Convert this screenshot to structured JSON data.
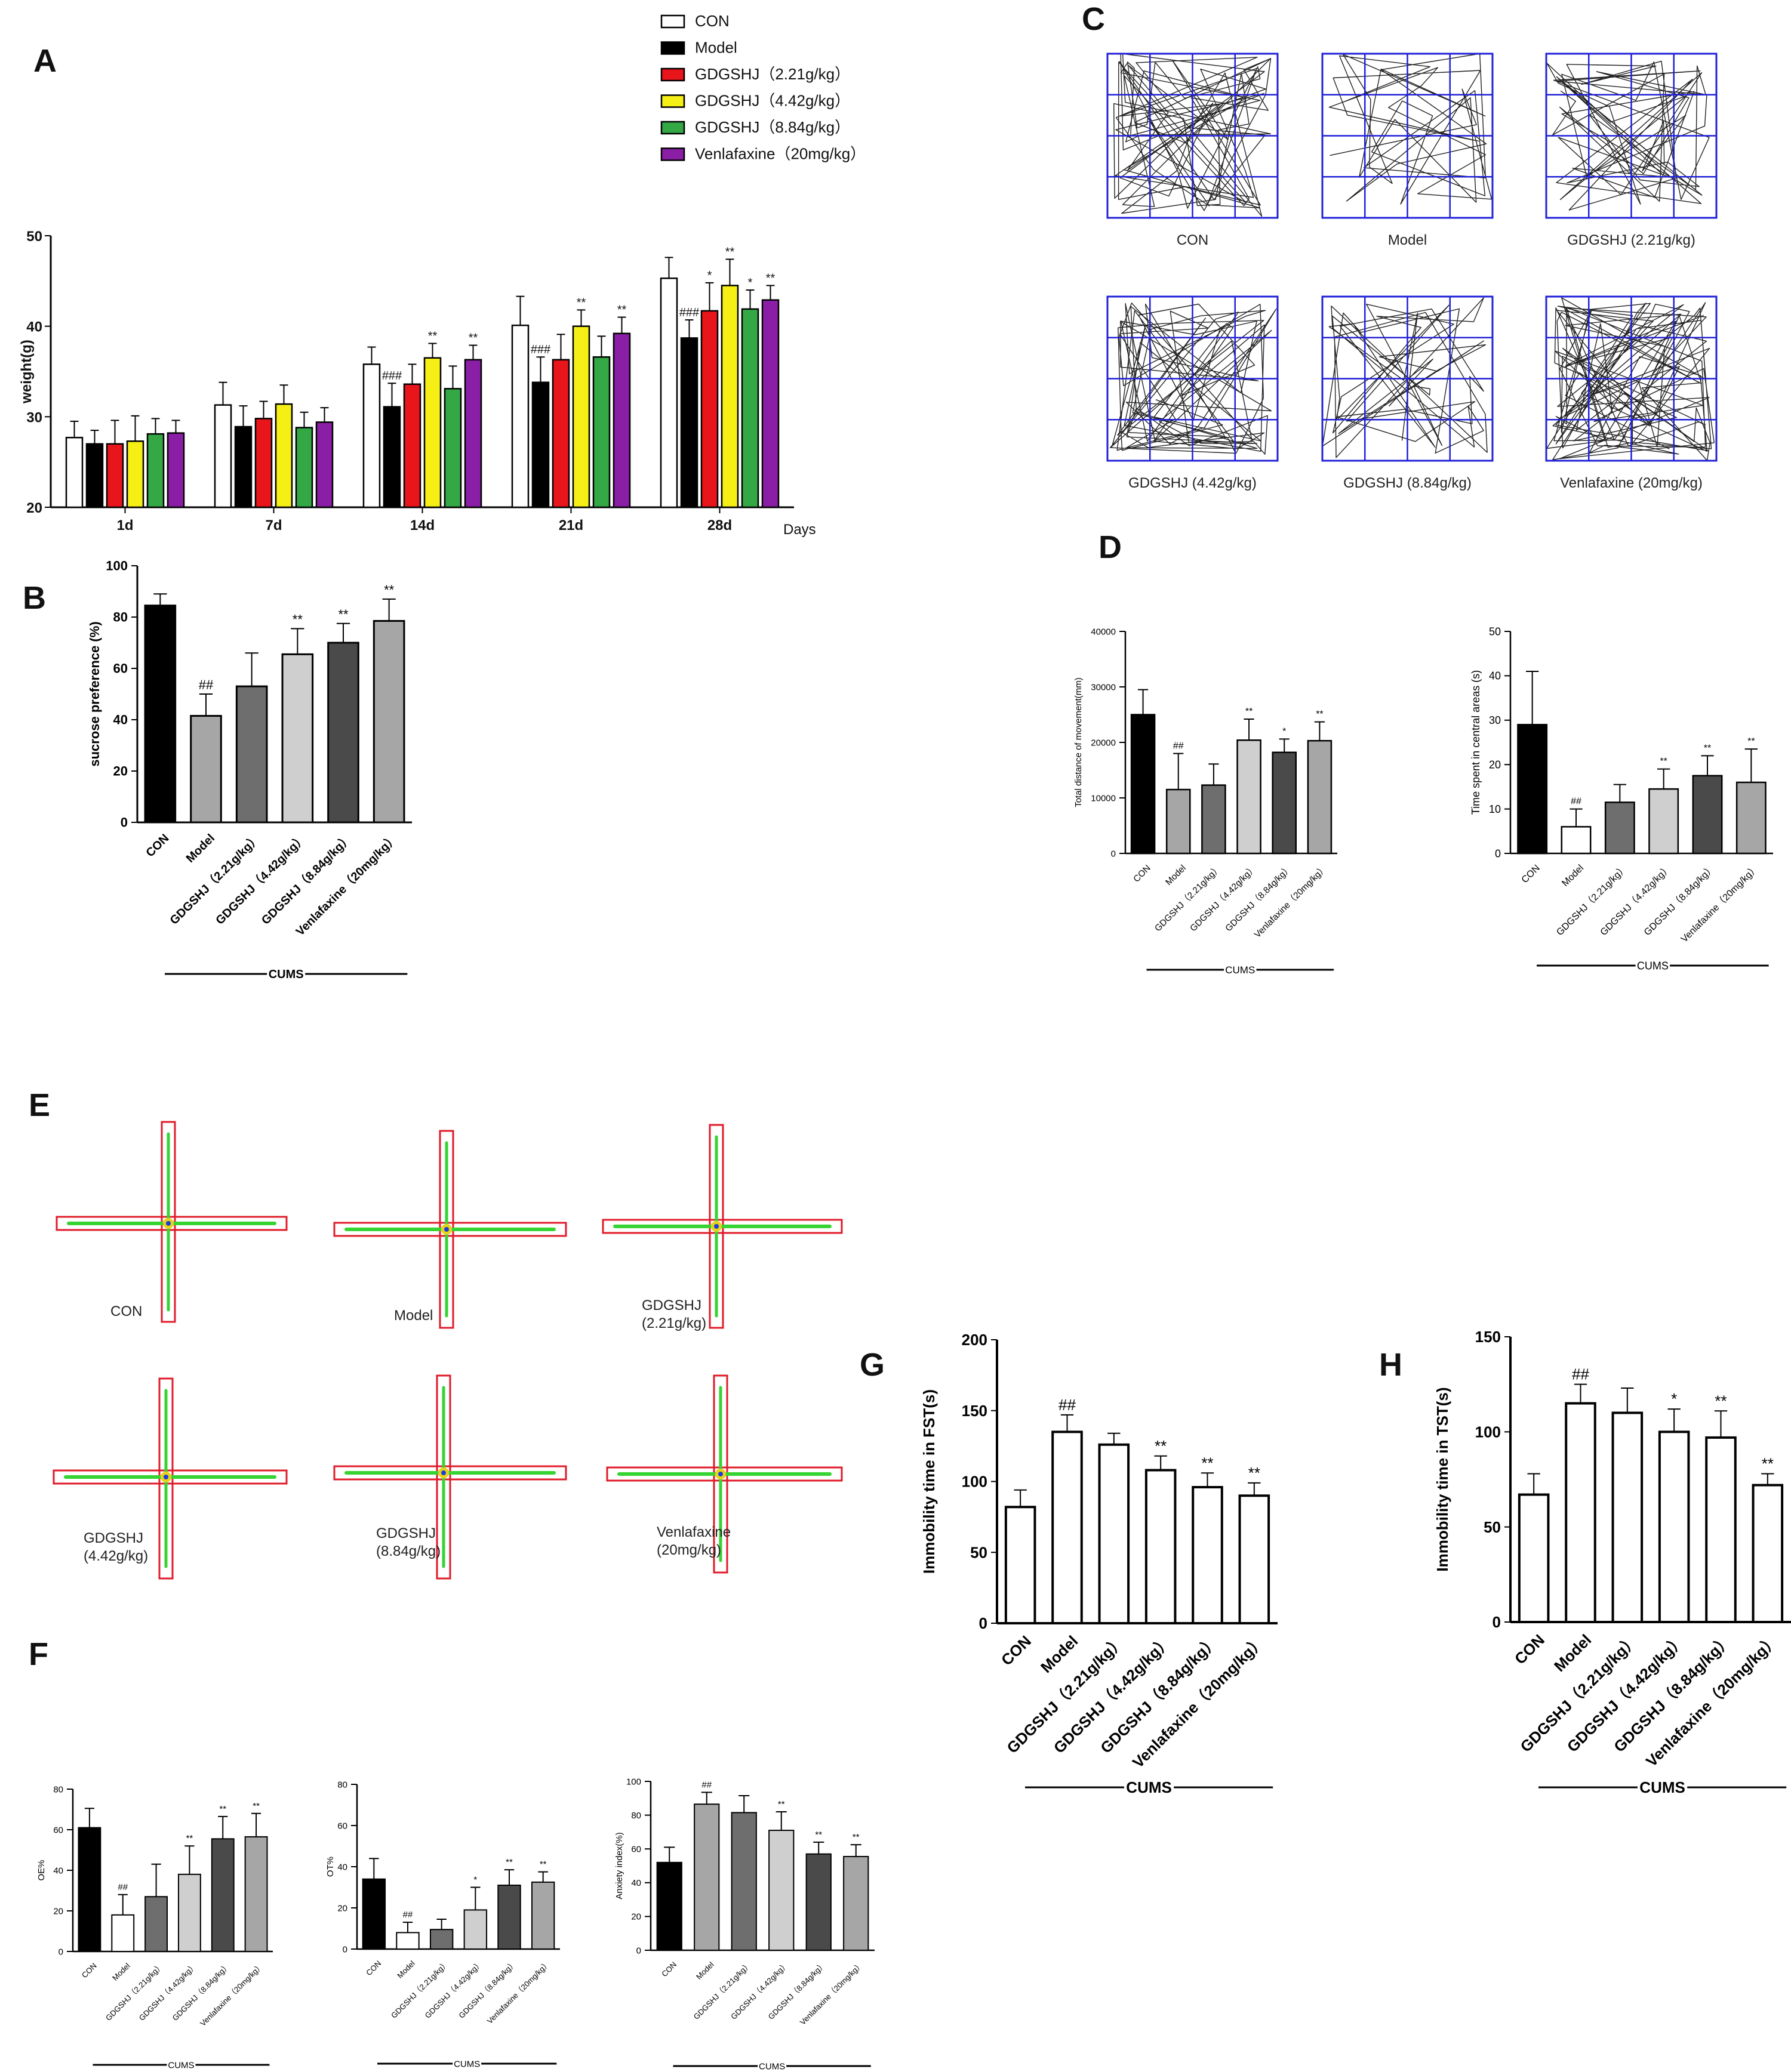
{
  "panels": {
    "A": "A",
    "B": "B",
    "C": "C",
    "D": "D",
    "E": "E",
    "F": "F",
    "G": "G",
    "H": "H"
  },
  "colors": {
    "CON": "#ffffff",
    "Model": "#000000",
    "GDGSHJ_2.21": "#e8151b",
    "GDGSHJ_4.42": "#f5ef16",
    "GDGSHJ_8.84": "#34a845",
    "Venlafaxine": "#8a1fa6"
  },
  "icons": {
    "track": "track-plot-icon",
    "maze": "plus-maze-icon"
  },
  "chart_data": [
    {
      "id": "A",
      "type": "bar",
      "title": "",
      "xlabel": "Days",
      "ylabel": "weight(g)",
      "ylim": [
        20,
        50
      ],
      "yticks": [
        "20",
        "30",
        "40",
        "50"
      ],
      "categories": [
        "1d",
        "7d",
        "14d",
        "21d",
        "28d"
      ],
      "legend": [
        "CON",
        "Model",
        "GDGSHJ（2.21g/kg）",
        "GDGSHJ（4.42g/kg）",
        "GDGSHJ（8.84g/kg）",
        "Venlafaxine（20mg/kg）"
      ],
      "legend_position": "top-right",
      "series": [
        {
          "name": "CON",
          "values": [
            27.7,
            31.3,
            35.8,
            40.1,
            45.3
          ],
          "errors": [
            1.8,
            2.5,
            1.9,
            3.2,
            2.3
          ],
          "labels": [
            "",
            "",
            "",
            "",
            ""
          ]
        },
        {
          "name": "Model",
          "values": [
            27.0,
            28.9,
            31.1,
            33.8,
            38.7
          ],
          "errors": [
            1.5,
            2.3,
            2.6,
            2.8,
            2.0
          ],
          "labels": [
            "",
            "",
            "###",
            "###",
            "###"
          ]
        },
        {
          "name": "GDGSHJ（2.21g/kg）",
          "values": [
            27.0,
            29.8,
            33.6,
            36.3,
            41.7
          ],
          "errors": [
            2.6,
            1.9,
            2.2,
            2.8,
            3.1
          ],
          "labels": [
            "",
            "",
            "",
            "",
            "*"
          ]
        },
        {
          "name": "GDGSHJ（4.42g/kg）",
          "values": [
            27.3,
            31.4,
            36.5,
            40.0,
            44.5
          ],
          "errors": [
            2.8,
            2.1,
            1.6,
            1.8,
            2.9
          ],
          "labels": [
            "",
            "",
            "**",
            "**",
            "**"
          ]
        },
        {
          "name": "GDGSHJ（8.84g/kg）",
          "values": [
            28.1,
            28.8,
            33.1,
            36.6,
            41.9
          ],
          "errors": [
            1.7,
            1.7,
            2.5,
            2.3,
            2.1
          ],
          "labels": [
            "",
            "",
            "",
            "",
            "*"
          ]
        },
        {
          "name": "Venlafaxine（20mg/kg）",
          "values": [
            28.2,
            29.4,
            36.3,
            39.2,
            42.9
          ],
          "errors": [
            1.4,
            1.6,
            1.6,
            1.8,
            1.6
          ],
          "labels": [
            "",
            "",
            "**",
            "**",
            "**"
          ]
        }
      ]
    },
    {
      "id": "B",
      "type": "bar",
      "ylabel": "sucrose preference (%)",
      "ylim": [
        0,
        100
      ],
      "yticks": [
        "0",
        "20",
        "40",
        "60",
        "80",
        "100"
      ],
      "categories": [
        "CON",
        "Model",
        "GDGSHJ（2.21g/kg）",
        "GDGSHJ（4.42g/kg）",
        "GDGSHJ（8.84g/kg）",
        "Venlafaxine（20mg/kg）"
      ],
      "values": [
        84.5,
        41.5,
        53,
        65.5,
        70,
        78.5
      ],
      "errors": [
        4.5,
        8.5,
        13,
        10,
        7.5,
        8.5
      ],
      "labels": [
        "",
        "##",
        "",
        "**",
        "**",
        "**"
      ],
      "fills": [
        "#000000",
        "#a6a6a6",
        "#6e6e6e",
        "#cfcfcf",
        "#4a4a4a",
        "#a6a6a6"
      ],
      "group_label": "CUMS"
    },
    {
      "id": "C",
      "type": "track_grid",
      "captions": [
        "CON",
        "Model",
        "GDGSHJ  (2.21g/kg)",
        "GDGSHJ  (4.42g/kg)",
        "GDGSHJ  (8.84g/kg)",
        "Venlafaxine  (20mg/kg)"
      ]
    },
    {
      "id": "D1",
      "type": "bar",
      "ylabel": "Total distance of movement(mm)",
      "ylim": [
        0,
        40000
      ],
      "yticks": [
        "0",
        "10000",
        "20000",
        "30000",
        "40000"
      ],
      "categories": [
        "CON",
        "Model",
        "GDGSHJ（2.21g/kg）",
        "GDGSHJ（4.42g/kg）",
        "GDGSHJ（8.84g/kg）",
        "Venlafaxine（20mg/kg）"
      ],
      "values": [
        25000,
        11500,
        12300,
        20400,
        18200,
        20300
      ],
      "errors": [
        4500,
        6500,
        3800,
        3800,
        2400,
        3400
      ],
      "labels": [
        "",
        "##",
        "",
        "**",
        "*",
        "**"
      ],
      "fills": [
        "#000000",
        "#a6a6a6",
        "#6e6e6e",
        "#cfcfcf",
        "#4a4a4a",
        "#a6a6a6"
      ],
      "group_label": "CUMS"
    },
    {
      "id": "D2",
      "type": "bar",
      "ylabel": "Time spent in central areas (s)",
      "ylim": [
        0,
        50
      ],
      "yticks": [
        "0",
        "10",
        "20",
        "30",
        "40",
        "50"
      ],
      "categories": [
        "CON",
        "Model",
        "GDGSHJ（2.21g/kg）",
        "GDGSHJ（4.42g/kg）",
        "GDGSHJ（8.84g/kg）",
        "Venlafaxine（20mg/kg）"
      ],
      "values": [
        29,
        6,
        11.5,
        14.5,
        17.5,
        16
      ],
      "errors": [
        12,
        4,
        4,
        4.5,
        4.5,
        7.5
      ],
      "labels": [
        "",
        "##",
        "",
        "**",
        "**",
        "**"
      ],
      "fills": [
        "#000000",
        "#ffffff",
        "#6e6e6e",
        "#cfcfcf",
        "#4a4a4a",
        "#a6a6a6"
      ],
      "group_label": "CUMS"
    },
    {
      "id": "E",
      "type": "maze_grid",
      "captions": [
        "CON",
        "Model",
        "GDGSHJ\n(2.21g/kg)",
        "GDGSHJ\n(4.42g/kg)",
        "GDGSHJ\n(8.84g/kg)",
        "Venlafaxine\n(20mg/kg)"
      ]
    },
    {
      "id": "F1",
      "type": "bar",
      "ylabel": "OE%",
      "ylim": [
        0,
        80
      ],
      "yticks": [
        "0",
        "20",
        "40",
        "60",
        "80"
      ],
      "categories": [
        "CON",
        "Model",
        "GDGSHJ（2.21g/kg）",
        "GDGSHJ（4.42g/kg）",
        "GDGSHJ（8.84g/kg）",
        "Venlafaxine（20mg/kg）"
      ],
      "values": [
        61,
        18,
        27,
        38,
        55.5,
        56.5
      ],
      "errors": [
        9.5,
        10,
        16,
        14,
        11,
        11.5
      ],
      "labels": [
        "",
        "##",
        "",
        "**",
        "**",
        "**"
      ],
      "fills": [
        "#000000",
        "#ffffff",
        "#6e6e6e",
        "#cfcfcf",
        "#4a4a4a",
        "#a6a6a6"
      ],
      "group_label": "CUMS"
    },
    {
      "id": "F2",
      "type": "bar",
      "ylabel": "OT%",
      "ylim": [
        0,
        80
      ],
      "yticks": [
        "0",
        "20",
        "40",
        "60",
        "80"
      ],
      "categories": [
        "CON",
        "Model",
        "GDGSHJ（2.21g/kg）",
        "GDGSHJ（4.42g/kg）",
        "GDGSHJ（8.84g/kg）",
        "Venlafaxine（20mg/kg）"
      ],
      "values": [
        34,
        8,
        9.5,
        19,
        31,
        32.5
      ],
      "errors": [
        10,
        5,
        5,
        11,
        7.5,
        5
      ],
      "labels": [
        "",
        "##",
        "",
        "*",
        "**",
        "**"
      ],
      "fills": [
        "#000000",
        "#ffffff",
        "#6e6e6e",
        "#cfcfcf",
        "#4a4a4a",
        "#a6a6a6"
      ],
      "group_label": "CUMS"
    },
    {
      "id": "F3",
      "type": "bar",
      "ylabel": "Anxiety index(%)",
      "ylim": [
        0,
        100
      ],
      "yticks": [
        "0",
        "20",
        "40",
        "60",
        "80",
        "100"
      ],
      "categories": [
        "CON",
        "Model",
        "GDGSHJ（2.21g/kg）",
        "GDGSHJ（4.42g/kg）",
        "GDGSHJ（8.84g/kg）",
        "Venlafaxine（20mg/kg）"
      ],
      "values": [
        52,
        86.5,
        81.5,
        71,
        57,
        55.5
      ],
      "errors": [
        9,
        7,
        10,
        11,
        7,
        7
      ],
      "labels": [
        "",
        "##",
        "",
        "**",
        "**",
        "**"
      ],
      "fills": [
        "#000000",
        "#a6a6a6",
        "#6e6e6e",
        "#cfcfcf",
        "#4a4a4a",
        "#a6a6a6"
      ],
      "group_label": "CUMS"
    },
    {
      "id": "G",
      "type": "bar",
      "ylabel": "Immobility time in FST(s)",
      "ylim": [
        0,
        200
      ],
      "yticks": [
        "0",
        "50",
        "100",
        "150",
        "200"
      ],
      "categories": [
        "CON",
        "Model",
        "GDGSHJ（2.21g/kg）",
        "GDGSHJ（4.42g/kg）",
        "GDGSHJ（8.84g/kg）",
        "Venlafaxine（20mg/kg）"
      ],
      "values": [
        82,
        135,
        126,
        108,
        96,
        90
      ],
      "errors": [
        12,
        12,
        8,
        10,
        10,
        9
      ],
      "labels": [
        "",
        "##",
        "",
        "**",
        "**",
        "**"
      ],
      "fills": [
        "#ffffff",
        "#ffffff",
        "#ffffff",
        "#ffffff",
        "#ffffff",
        "#ffffff"
      ],
      "group_label": "CUMS"
    },
    {
      "id": "H",
      "type": "bar",
      "ylabel": "Immobility time in TST(s)",
      "ylim": [
        0,
        150
      ],
      "yticks": [
        "0",
        "50",
        "100",
        "150"
      ],
      "categories": [
        "CON",
        "Model",
        "GDGSHJ（2.21g/kg）",
        "GDGSHJ（4.42g/kg）",
        "GDGSHJ（8.84g/kg）",
        "Venlafaxine（20mg/kg）"
      ],
      "values": [
        67,
        115,
        110,
        100,
        97,
        72
      ],
      "errors": [
        11,
        10,
        13,
        12,
        14,
        6
      ],
      "labels": [
        "",
        "##",
        "",
        "*",
        "**",
        "**"
      ],
      "fills": [
        "#ffffff",
        "#ffffff",
        "#ffffff",
        "#ffffff",
        "#ffffff",
        "#ffffff"
      ],
      "group_label": "CUMS"
    }
  ]
}
